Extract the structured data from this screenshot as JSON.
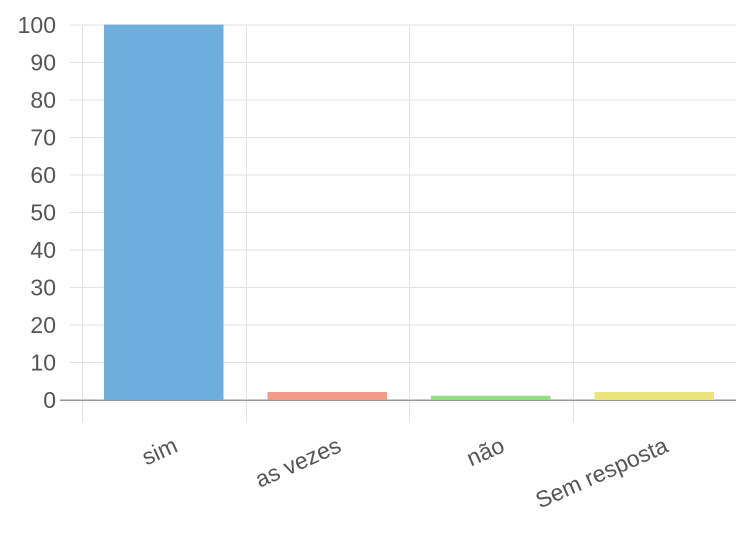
{
  "chart_data": {
    "type": "bar",
    "categories": [
      "sim",
      "as vezes",
      "não",
      "Sem resposta"
    ],
    "values": [
      100,
      2,
      1,
      2
    ],
    "colors": [
      "#6eaedc",
      "#f29c86",
      "#8fe07f",
      "#eae47a"
    ],
    "ylim": [
      0,
      100
    ],
    "yticks": [
      0,
      10,
      20,
      30,
      40,
      50,
      60,
      70,
      80,
      90,
      100
    ],
    "ytick_labels": [
      "0",
      "10",
      "20",
      "30",
      "40",
      "50",
      "60",
      "70",
      "80",
      "90",
      "100"
    ],
    "grid": true,
    "title": "",
    "xlabel": "",
    "ylabel": ""
  }
}
